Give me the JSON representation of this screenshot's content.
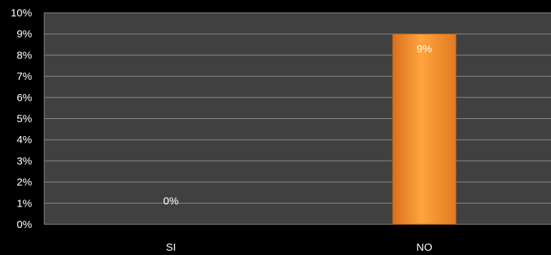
{
  "chart_data": {
    "type": "bar",
    "categories": [
      "SI",
      "NO"
    ],
    "values": [
      0,
      9
    ],
    "value_labels": [
      "0%",
      "9%"
    ],
    "ylim": [
      0,
      10
    ],
    "y_ticks": [
      "0%",
      "1%",
      "2%",
      "3%",
      "4%",
      "5%",
      "6%",
      "7%",
      "8%",
      "9%",
      "10%"
    ],
    "grid": true,
    "colors": {
      "background": "#000000",
      "plot_area": "#404040",
      "gridline": "#8c8c8c",
      "bar_light": "#ffa23c",
      "bar_dark": "#dc7420",
      "text": "#ffffff"
    }
  }
}
